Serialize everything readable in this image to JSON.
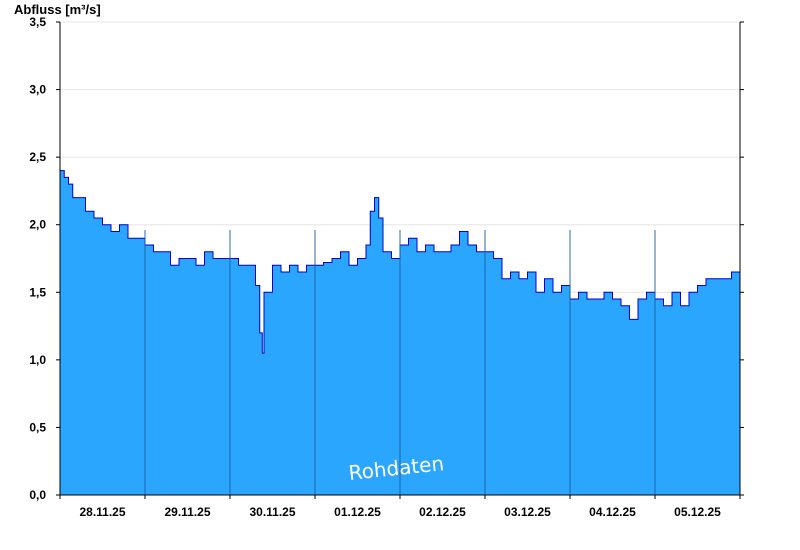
{
  "chart_data": {
    "type": "area",
    "ylabel": "Abfluss [m³/s]",
    "watermark": "Rohdaten",
    "ylim": [
      0,
      3.5
    ],
    "yticks": [
      "0,0",
      "0,5",
      "1,0",
      "1,5",
      "2,0",
      "2,5",
      "3,0",
      "3,5"
    ],
    "ytick_values": [
      0,
      0.5,
      1.0,
      1.5,
      2.0,
      2.5,
      3.0,
      3.5
    ],
    "xlim": [
      0,
      8
    ],
    "day_labels": [
      "28.11.25",
      "29.11.25",
      "30.11.25",
      "01.12.25",
      "02.12.25",
      "03.12.25",
      "04.12.25",
      "05.12.25"
    ],
    "grid": true,
    "colors": {
      "fill": "#2ba6ff",
      "line": "#0000cc",
      "grid": "#e6e6e6",
      "divider": "#1a5a9a"
    },
    "series": [
      {
        "x": [
          0.0,
          0.05,
          0.1,
          0.15,
          0.2,
          0.3,
          0.4,
          0.5,
          0.6,
          0.7,
          0.8,
          0.9,
          1.0,
          1.1,
          1.2,
          1.3,
          1.4,
          1.5,
          1.6,
          1.7,
          1.8,
          1.9,
          2.0,
          2.1,
          2.2,
          2.3,
          2.35,
          2.38,
          2.4,
          2.5,
          2.6,
          2.7,
          2.8,
          2.9,
          3.0,
          3.1,
          3.2,
          3.3,
          3.4,
          3.5,
          3.6,
          3.65,
          3.7,
          3.75,
          3.8,
          3.9,
          4.0,
          4.1,
          4.2,
          4.3,
          4.4,
          4.5,
          4.6,
          4.7,
          4.8,
          4.9,
          5.0,
          5.1,
          5.2,
          5.3,
          5.4,
          5.5,
          5.6,
          5.7,
          5.8,
          5.9,
          6.0,
          6.1,
          6.2,
          6.3,
          6.4,
          6.5,
          6.6,
          6.7,
          6.8,
          6.9,
          7.0,
          7.1,
          7.2,
          7.3,
          7.4,
          7.5,
          7.6,
          7.7,
          7.8,
          7.9,
          8.0
        ],
        "values": [
          2.4,
          2.35,
          2.3,
          2.2,
          2.2,
          2.1,
          2.05,
          2.0,
          1.95,
          2.0,
          1.9,
          1.9,
          1.85,
          1.8,
          1.8,
          1.7,
          1.75,
          1.75,
          1.7,
          1.8,
          1.75,
          1.75,
          1.75,
          1.7,
          1.7,
          1.55,
          1.2,
          1.05,
          1.5,
          1.7,
          1.65,
          1.7,
          1.65,
          1.7,
          1.7,
          1.72,
          1.75,
          1.8,
          1.7,
          1.75,
          1.85,
          2.1,
          2.2,
          2.05,
          1.8,
          1.75,
          1.85,
          1.9,
          1.8,
          1.85,
          1.8,
          1.8,
          1.85,
          1.95,
          1.85,
          1.8,
          1.8,
          1.75,
          1.6,
          1.65,
          1.6,
          1.65,
          1.5,
          1.6,
          1.5,
          1.55,
          1.45,
          1.5,
          1.45,
          1.45,
          1.5,
          1.45,
          1.4,
          1.3,
          1.45,
          1.5,
          1.45,
          1.4,
          1.5,
          1.4,
          1.5,
          1.55,
          1.6,
          1.6,
          1.6,
          1.65,
          1.65
        ]
      }
    ]
  }
}
